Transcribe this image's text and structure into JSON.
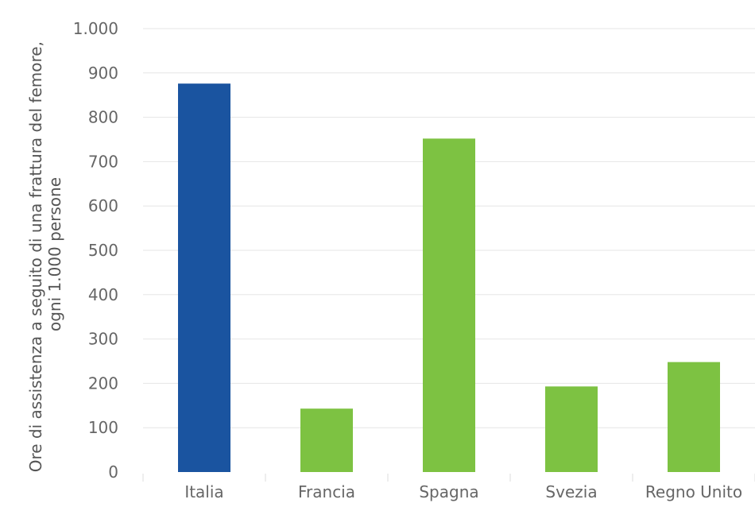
{
  "chart_data": {
    "type": "bar",
    "title": "",
    "xlabel": "",
    "ylabel_lines": [
      "Ore di assistenza a seguito di una frattura del femore,",
      "ogni 1.000 persone"
    ],
    "categories": [
      "Italia",
      "Francia",
      "Spagna",
      "Svezia",
      "Regno Unito"
    ],
    "values": [
      876,
      143,
      752,
      193,
      248
    ],
    "highlight_index": 0,
    "colors": {
      "highlight": "#1a54a0",
      "default": "#7dc242",
      "grid": "#e6e6e6",
      "text": "#666666"
    },
    "ylim": [
      0,
      1000
    ],
    "yticks": [
      0,
      100,
      200,
      300,
      400,
      500,
      600,
      700,
      800,
      900,
      1000
    ],
    "ytick_labels": [
      "0",
      "100",
      "200",
      "300",
      "400",
      "500",
      "600",
      "700",
      "800",
      "900",
      "1.000"
    ],
    "grid": true,
    "legend": "none"
  }
}
